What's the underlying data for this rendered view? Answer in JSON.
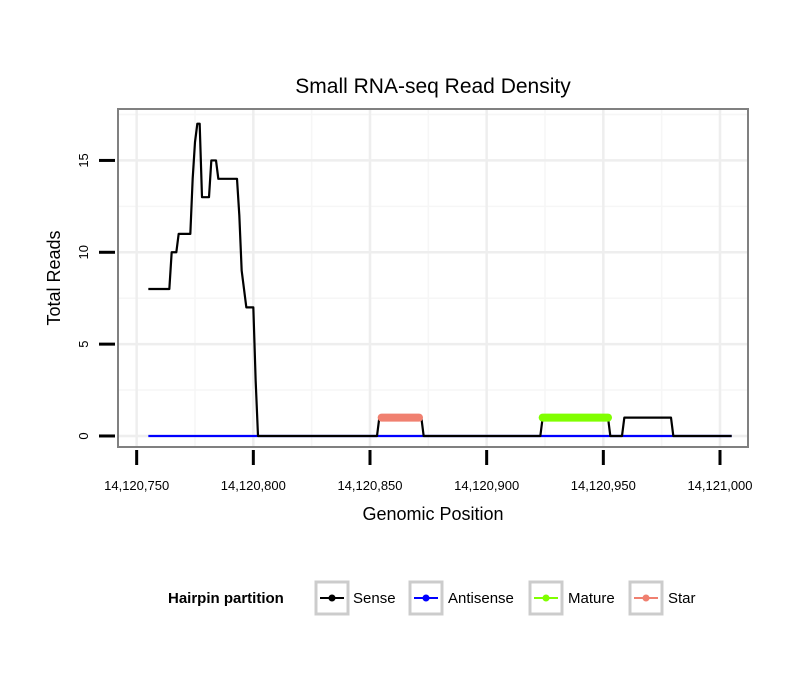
{
  "chart_data": {
    "type": "line",
    "title": "Small RNA-seq Read Density",
    "xlabel": "Genomic Position",
    "ylabel": "Total Reads",
    "xlim": [
      14120742,
      14121012
    ],
    "ylim": [
      -0.6,
      17.8
    ],
    "x_ticks": [
      14120750,
      14120800,
      14120850,
      14120900,
      14120950,
      14121000
    ],
    "x_tick_labels": [
      "14,120,750",
      "14,120,800",
      "14,120,850",
      "14,120,900",
      "14,120,950",
      "14,121,000"
    ],
    "y_ticks": [
      0,
      5,
      10,
      15
    ],
    "y_tick_labels": [
      "0",
      "5",
      "10",
      "15"
    ],
    "grid": true,
    "legend_position": "bottom",
    "legend_title": "Hairpin partition",
    "series": [
      {
        "name": "Sense",
        "color": "#000000",
        "stroke_width": 2.2,
        "points": [
          [
            14120755,
            8
          ],
          [
            14120764,
            8
          ],
          [
            14120765,
            10
          ],
          [
            14120767,
            10
          ],
          [
            14120768,
            11
          ],
          [
            14120773,
            11
          ],
          [
            14120774,
            14
          ],
          [
            14120775,
            16
          ],
          [
            14120776,
            17
          ],
          [
            14120777,
            17
          ],
          [
            14120778,
            13
          ],
          [
            14120781,
            13
          ],
          [
            14120782,
            15
          ],
          [
            14120784,
            15
          ],
          [
            14120785,
            14
          ],
          [
            14120793,
            14
          ],
          [
            14120794,
            12
          ],
          [
            14120795,
            9
          ],
          [
            14120796,
            8
          ],
          [
            14120797,
            7
          ],
          [
            14120800,
            7
          ],
          [
            14120801,
            3
          ],
          [
            14120802,
            0
          ],
          [
            14120853,
            0
          ],
          [
            14120854,
            1
          ],
          [
            14120872,
            1
          ],
          [
            14120873,
            0
          ],
          [
            14120923,
            0
          ],
          [
            14120924,
            1
          ],
          [
            14120952,
            1
          ],
          [
            14120953,
            0
          ],
          [
            14120958,
            0
          ],
          [
            14120959,
            1
          ],
          [
            14120979,
            1
          ],
          [
            14120980,
            0
          ],
          [
            14121005,
            0
          ]
        ]
      },
      {
        "name": "Antisense",
        "color": "#0000ff",
        "stroke_width": 2.2,
        "points": [
          [
            14120755,
            0
          ],
          [
            14121005,
            0
          ]
        ]
      },
      {
        "name": "Mature",
        "color": "#80ff00",
        "stroke_width": 8,
        "points": [
          [
            14120924,
            1
          ],
          [
            14120952,
            1
          ]
        ]
      },
      {
        "name": "Star",
        "color": "#f08070",
        "stroke_width": 8,
        "points": [
          [
            14120855,
            1
          ],
          [
            14120871,
            1
          ]
        ]
      }
    ]
  }
}
